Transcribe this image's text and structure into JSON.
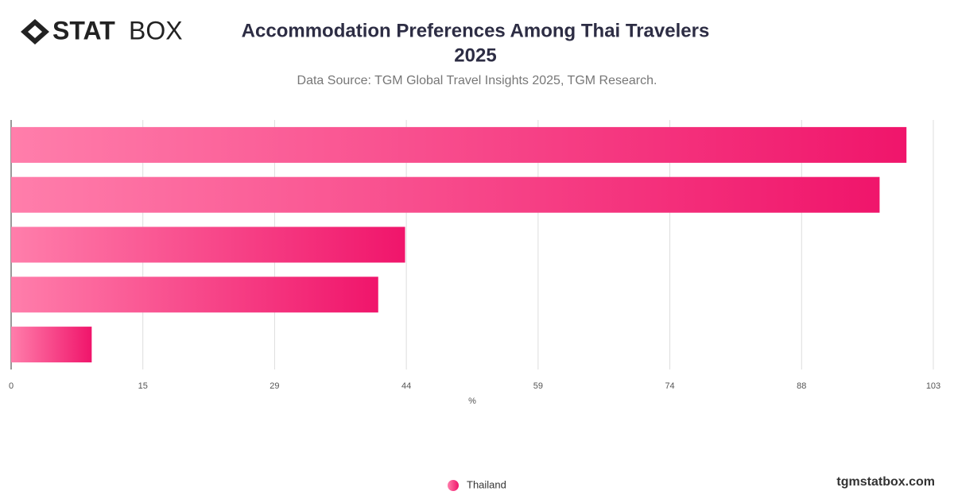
{
  "brand": {
    "logo_bold": "STAT",
    "logo_light": "BOX",
    "site": "tgmstatbox.com"
  },
  "chart_data": {
    "type": "hbar",
    "title": [
      "Accommodation Preferences Among Thai Travelers",
      "2025"
    ],
    "subtitle": "Data Source: TGM Global Travel Insights 2025, TGM Research.",
    "xlabel": "%",
    "categories": [
      null,
      null,
      null,
      null,
      null
    ],
    "series": [
      {
        "name": "Thailand",
        "color": "#f0156b",
        "values": [
          100,
          97,
          44,
          41,
          9
        ]
      }
    ],
    "xlim": [
      0,
      103
    ],
    "xticks": [
      0,
      {
        "value": 14.714,
        "label": "15"
      },
      {
        "value": 29.429,
        "label": "29"
      },
      {
        "value": 44.143,
        "label": "44"
      },
      {
        "value": 58.857,
        "label": "59"
      },
      {
        "value": 73.571,
        "label": "74"
      },
      {
        "value": 88.286,
        "label": "88"
      },
      103
    ],
    "grid": true
  }
}
